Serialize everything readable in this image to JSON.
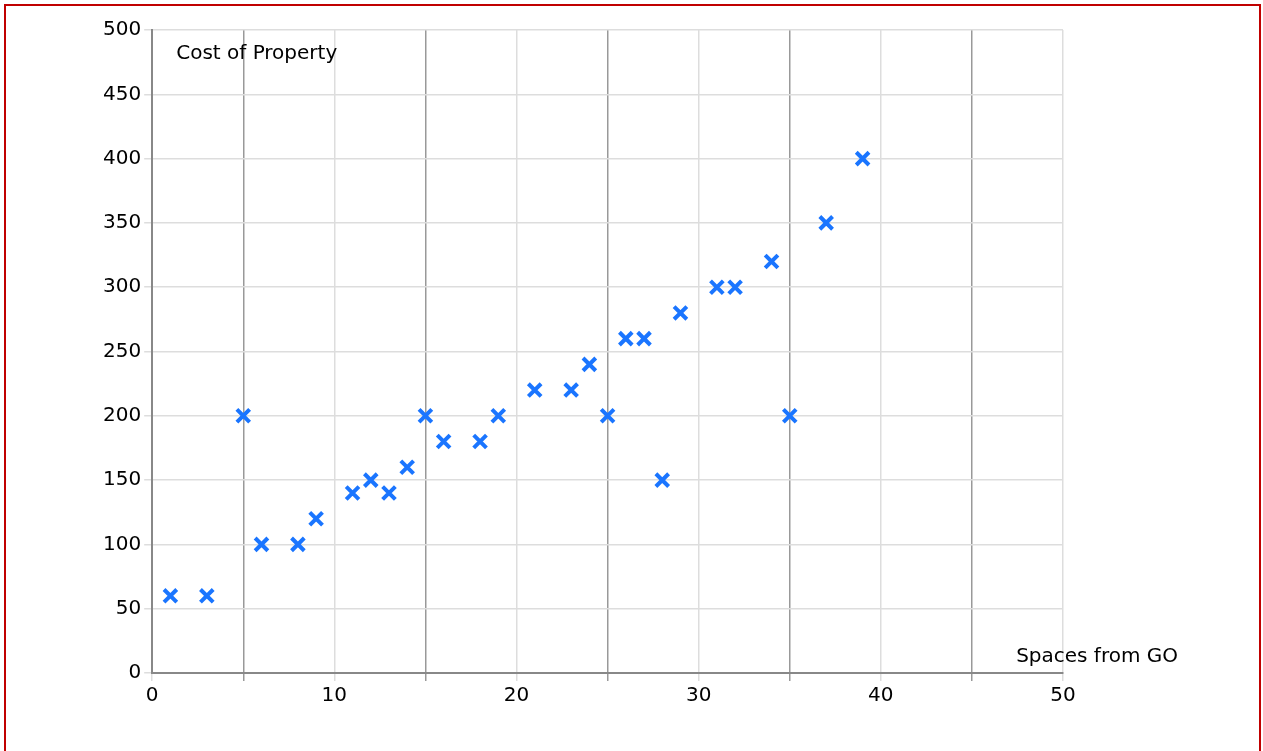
{
  "chart_data": {
    "type": "scatter",
    "xlabel": "Spaces from GO",
    "ylabel": "Cost of Property",
    "x": [
      1,
      3,
      5,
      6,
      8,
      9,
      11,
      12,
      13,
      14,
      15,
      16,
      18,
      19,
      21,
      23,
      24,
      25,
      26,
      27,
      28,
      29,
      31,
      32,
      34,
      35,
      37,
      39
    ],
    "values": [
      60,
      60,
      200,
      100,
      100,
      120,
      140,
      150,
      140,
      160,
      200,
      180,
      180,
      200,
      220,
      220,
      240,
      200,
      260,
      260,
      150,
      280,
      300,
      300,
      320,
      200,
      350,
      400
    ],
    "color": "#1a75ff",
    "marker": "cross",
    "grid": true,
    "legend": false,
    "xlim": [
      0,
      50
    ],
    "xticks": [
      0,
      {
        "value": 5,
        "label": null
      },
      10,
      {
        "value": 15,
        "label": null
      },
      20,
      {
        "value": 25,
        "label": null
      },
      30,
      {
        "value": 35,
        "label": null
      },
      40,
      {
        "value": 45,
        "label": null
      },
      50
    ],
    "ylim": [
      0,
      500
    ],
    "yticks": [
      0,
      50,
      100,
      150,
      200,
      250,
      300,
      350,
      400,
      450,
      500
    ]
  }
}
